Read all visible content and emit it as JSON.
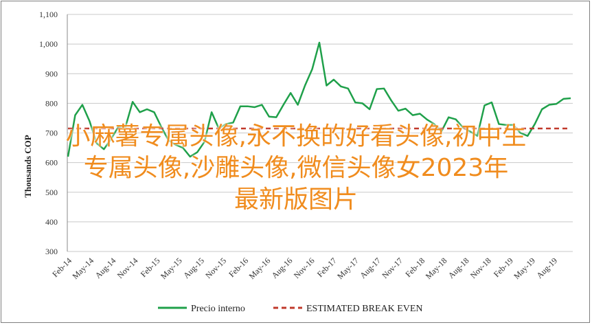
{
  "chart_data": {
    "type": "line",
    "ylabel": "Thousands COP",
    "ylim": [
      300,
      1100
    ],
    "yticks": [
      "300",
      "400",
      "500",
      "600",
      "700",
      "800",
      "900",
      "1,000",
      "1,100"
    ],
    "xtick_labels": [
      "Feb-14",
      "May-14",
      "Aug-14",
      "Nov-14",
      "Feb-15",
      "May-15",
      "Aug-15",
      "Nov-15",
      "Feb-16",
      "May-16",
      "Aug-16",
      "Nov-16",
      "Feb-17",
      "May-17",
      "Aug-17",
      "Nov-17",
      "Feb-18",
      "May-18",
      "Aug-18",
      "Nov-18",
      "Feb-19",
      "May-19",
      "Aug-19"
    ],
    "series": [
      {
        "name": "Precio interno",
        "color": "#1fa04a",
        "style": "solid",
        "values": [
          620,
          760,
          795,
          740,
          665,
          645,
          680,
          720,
          720,
          805,
          770,
          780,
          770,
          720,
          675,
          660,
          650,
          620,
          635,
          670,
          770,
          715,
          730,
          735,
          790,
          790,
          787,
          795,
          755,
          753,
          795,
          835,
          795,
          860,
          915,
          1005,
          860,
          880,
          857,
          850,
          803,
          800,
          780,
          848,
          850,
          810,
          775,
          782,
          760,
          765,
          745,
          730,
          705,
          753,
          746,
          718,
          705,
          690,
          793,
          803,
          730,
          727,
          727,
          700,
          690,
          730,
          780,
          795,
          798,
          815,
          817
        ]
      },
      {
        "name": "ESTIMATED BREAK EVEN",
        "color": "#c0392b",
        "style": "dashed",
        "values": [
          715,
          715
        ]
      }
    ],
    "legend_position": "bottom",
    "grid": "horizontal"
  },
  "overlay": {
    "line1": "小麻薯专属头像,永不换的好看头像,初中生",
    "line2": "专属头像,沙雕头像,微信头像女2023年",
    "line3": "最新版图片"
  }
}
